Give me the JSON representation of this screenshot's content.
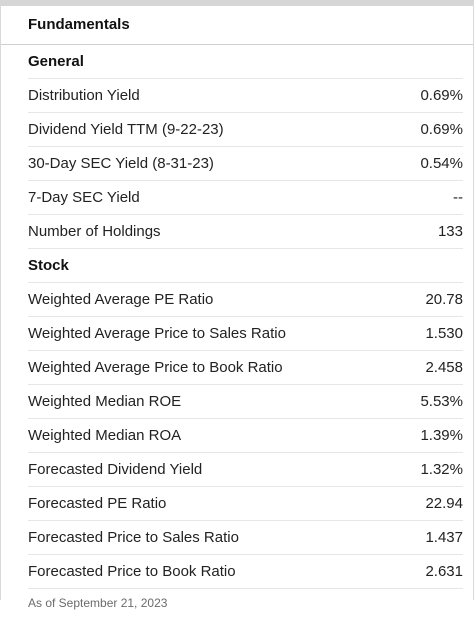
{
  "panel": {
    "title": "Fundamentals"
  },
  "general": {
    "header": "General",
    "rows": [
      {
        "label": "Distribution Yield",
        "value": "0.69%"
      },
      {
        "label": "Dividend Yield TTM (9-22-23)",
        "value": "0.69%"
      },
      {
        "label": "30-Day SEC Yield (8-31-23)",
        "value": "0.54%"
      },
      {
        "label": "7-Day SEC Yield",
        "value": "--"
      },
      {
        "label": "Number of Holdings",
        "value": "133"
      }
    ]
  },
  "stock": {
    "header": "Stock",
    "rows": [
      {
        "label": "Weighted Average PE Ratio",
        "value": "20.78"
      },
      {
        "label": "Weighted Average Price to Sales Ratio",
        "value": "1.530"
      },
      {
        "label": "Weighted Average Price to Book Ratio",
        "value": "2.458"
      },
      {
        "label": "Weighted Median ROE",
        "value": "5.53%"
      },
      {
        "label": "Weighted Median ROA",
        "value": "1.39%"
      },
      {
        "label": "Forecasted Dividend Yield",
        "value": "1.32%"
      },
      {
        "label": "Forecasted PE Ratio",
        "value": "22.94"
      },
      {
        "label": "Forecasted Price to Sales Ratio",
        "value": "1.437"
      },
      {
        "label": "Forecasted Price to Book Ratio",
        "value": "2.631"
      }
    ]
  },
  "footnote": "As of September 21, 2023"
}
